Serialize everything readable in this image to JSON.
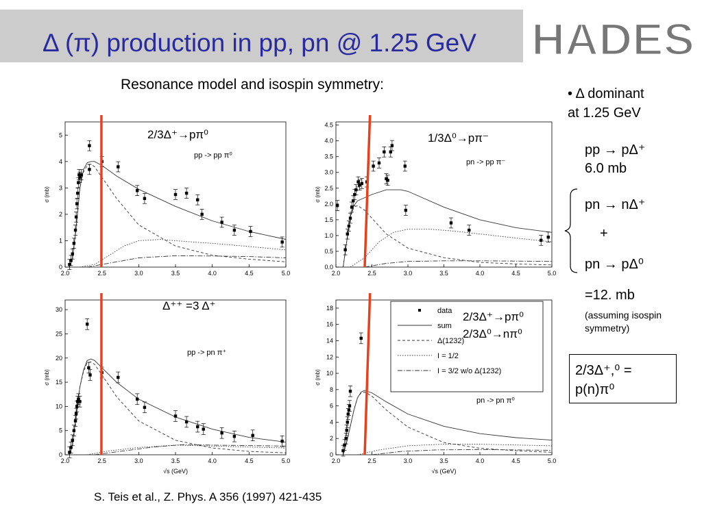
{
  "header": {
    "title": "Δ (π) production in pp, pn @ 1.25 GeV",
    "logo_text": "HADES"
  },
  "subtitle": "Resonance model and isospin symmetry:",
  "side": {
    "bullet": "• Δ dominant",
    "bullet2": "at 1.25 GeV",
    "pp_reaction": "pp → pΔ⁺",
    "pp_value": "6.0 mb",
    "pn_reaction1": "pn → nΔ⁺",
    "plus": "+",
    "pn_reaction2": "pn → pΔ⁰",
    "pn_value": "=12. mb",
    "note1": "(assuming isospin",
    "note2": "symmetry)",
    "box_line1": "2/3Δ⁺,⁰ =",
    "box_line2": "p(n)π⁰"
  },
  "citation": "S. Teis et al., Z. Phys. A 356 (1997) 421-435",
  "colors": {
    "title": "#2a2aa0",
    "red_line": "#e8401c",
    "title_bar": "#cccccc"
  },
  "panel_labels": {
    "p1": "2/3Δ⁺→pπ⁰",
    "p2": "1/3Δ⁰→pπ⁻",
    "p3": "Δ⁺⁺ =3 Δ⁺",
    "legend_extra1": "2/3Δ⁺→pπ⁰",
    "legend_extra2": "2/3Δ⁰→nπ⁰"
  },
  "chart_data": [
    {
      "type": "scatter",
      "reaction": "pp -> pp π⁰",
      "xlabel": "",
      "ylabel": "σ (mb)",
      "xlim": [
        2.0,
        5.0
      ],
      "ylim": [
        0,
        5.5
      ],
      "xticks": [
        "2.0",
        "2.5",
        "3.0",
        "3.5",
        "4.0",
        "4.5",
        "5.0"
      ],
      "yticks": [
        "0",
        "1",
        "2",
        "3",
        "4",
        "5"
      ],
      "red_line_x": 2.4,
      "data_points": [
        [
          2.06,
          0.1
        ],
        [
          2.08,
          0.25
        ],
        [
          2.1,
          0.5
        ],
        [
          2.12,
          0.9
        ],
        [
          2.14,
          1.4
        ],
        [
          2.15,
          1.9
        ],
        [
          2.16,
          2.4
        ],
        [
          2.17,
          2.8
        ],
        [
          2.18,
          3.2
        ],
        [
          2.19,
          3.5
        ],
        [
          2.2,
          3.4
        ],
        [
          2.22,
          3.5
        ],
        [
          2.33,
          4.6
        ],
        [
          2.33,
          3.7
        ],
        [
          2.5,
          4.0
        ],
        [
          2.72,
          3.8
        ],
        [
          2.98,
          2.9
        ],
        [
          3.08,
          2.6
        ],
        [
          3.5,
          2.75
        ],
        [
          3.65,
          2.8
        ],
        [
          3.8,
          2.55
        ],
        [
          3.86,
          2.0
        ],
        [
          4.13,
          1.7
        ],
        [
          4.3,
          1.4
        ],
        [
          4.52,
          1.35
        ],
        [
          4.95,
          0.95
        ]
      ],
      "series": [
        {
          "name": "sum",
          "x": [
            2.05,
            2.1,
            2.15,
            2.2,
            2.25,
            2.3,
            2.35,
            2.4,
            2.5,
            2.7,
            3.0,
            3.5,
            4.0,
            4.5,
            5.0
          ],
          "y": [
            0,
            0.3,
            1.5,
            3.0,
            3.7,
            3.95,
            4.0,
            4.0,
            3.85,
            3.45,
            2.95,
            2.3,
            1.75,
            1.35,
            1.05
          ]
        },
        {
          "name": "Δ(1232)",
          "x": [
            2.05,
            2.1,
            2.15,
            2.2,
            2.25,
            2.3,
            2.35,
            2.4,
            2.5,
            2.7,
            3.0,
            3.5,
            4.0,
            4.5,
            5.0
          ],
          "y": [
            0,
            0.3,
            1.5,
            3.0,
            3.6,
            3.85,
            3.9,
            3.8,
            3.4,
            2.6,
            1.6,
            0.8,
            0.45,
            0.3,
            0.2
          ]
        },
        {
          "name": "I = 1/2",
          "x": [
            2.2,
            2.4,
            2.6,
            2.8,
            3.0,
            3.3,
            3.5,
            4.0,
            4.5,
            5.0
          ],
          "y": [
            0,
            0.1,
            0.45,
            0.8,
            1.0,
            1.05,
            1.0,
            0.9,
            0.78,
            0.65
          ]
        },
        {
          "name": "I = 3/2 w/o Δ(1232)",
          "x": [
            2.3,
            2.6,
            3.0,
            3.5,
            4.0,
            4.5,
            5.0
          ],
          "y": [
            0,
            0.15,
            0.35,
            0.43,
            0.42,
            0.4,
            0.35
          ]
        }
      ]
    },
    {
      "type": "scatter",
      "reaction": "pn -> pp π⁻",
      "xlabel": "",
      "ylabel": "σ (mb)",
      "xlim": [
        2.0,
        5.0
      ],
      "ylim": [
        0,
        4.6
      ],
      "xticks": [
        "2.0",
        "2.5",
        "3.0",
        "3.5",
        "4.0",
        "4.5",
        "5.0"
      ],
      "yticks": [
        "0.0",
        "0.5",
        "1.0",
        "1.5",
        "2.0",
        "2.5",
        "3.0",
        "3.5",
        "4.0",
        "4.5"
      ],
      "red_line_x": 2.4,
      "data_points": [
        [
          2.02,
          1.95
        ],
        [
          2.13,
          0.55
        ],
        [
          2.16,
          1.05
        ],
        [
          2.18,
          1.3
        ],
        [
          2.2,
          1.55
        ],
        [
          2.22,
          1.9
        ],
        [
          2.24,
          2.1
        ],
        [
          2.26,
          2.3
        ],
        [
          2.28,
          2.45
        ],
        [
          2.31,
          2.7
        ],
        [
          2.33,
          2.6
        ],
        [
          2.36,
          2.65
        ],
        [
          2.43,
          2.7
        ],
        [
          2.52,
          3.2
        ],
        [
          2.6,
          3.3
        ],
        [
          2.67,
          3.65
        ],
        [
          2.7,
          2.8
        ],
        [
          2.72,
          2.75
        ],
        [
          2.76,
          3.65
        ],
        [
          2.78,
          3.85
        ],
        [
          2.96,
          3.2
        ],
        [
          2.97,
          1.8
        ],
        [
          3.6,
          1.4
        ],
        [
          3.85,
          1.17
        ],
        [
          4.85,
          0.85
        ],
        [
          4.95,
          0.95
        ]
      ],
      "series": [
        {
          "name": "sum",
          "x": [
            2.1,
            2.15,
            2.2,
            2.25,
            2.3,
            2.4,
            2.5,
            2.7,
            2.9,
            3.0,
            3.2,
            3.5,
            4.0,
            4.5,
            5.0
          ],
          "y": [
            0,
            0.8,
            1.6,
            1.95,
            2.1,
            2.2,
            2.3,
            2.45,
            2.45,
            2.4,
            2.2,
            1.9,
            1.5,
            1.25,
            1.1
          ]
        },
        {
          "name": "Δ(1232)",
          "x": [
            2.1,
            2.15,
            2.2,
            2.25,
            2.3,
            2.4,
            2.5,
            2.7,
            3.0,
            3.5,
            4.0,
            4.5,
            5.0
          ],
          "y": [
            0,
            0.8,
            1.6,
            1.9,
            1.95,
            1.8,
            1.55,
            1.05,
            0.6,
            0.3,
            0.15,
            0.1,
            0.07
          ]
        },
        {
          "name": "I = 1/2",
          "x": [
            2.2,
            2.4,
            2.6,
            2.8,
            3.0,
            3.3,
            3.6,
            4.0,
            4.5,
            5.0
          ],
          "y": [
            0,
            0.3,
            0.8,
            1.1,
            1.2,
            1.2,
            1.15,
            1.05,
            0.92,
            0.8
          ]
        },
        {
          "name": "I = 3/2 w/o Δ(1232)",
          "x": [
            2.4,
            2.7,
            3.0,
            3.5,
            4.0,
            4.5,
            5.0
          ],
          "y": [
            0,
            0.12,
            0.18,
            0.2,
            0.2,
            0.19,
            0.18
          ]
        }
      ]
    },
    {
      "type": "scatter",
      "reaction": "pp -> pn π⁺",
      "xlabel": "√s (GeV)",
      "ylabel": "σ (mb)",
      "xlim": [
        2.0,
        5.0
      ],
      "ylim": [
        0,
        32
      ],
      "xticks": [
        "2.0",
        "2.5",
        "3.0",
        "3.5",
        "4.0",
        "4.5",
        "5.0"
      ],
      "yticks": [
        "0",
        "5",
        "10",
        "15",
        "20",
        "25",
        "30"
      ],
      "red_line_x": 2.4,
      "data_points": [
        [
          2.06,
          0.5
        ],
        [
          2.08,
          1.5
        ],
        [
          2.1,
          3
        ],
        [
          2.12,
          5
        ],
        [
          2.14,
          7
        ],
        [
          2.15,
          8.5
        ],
        [
          2.16,
          10
        ],
        [
          2.17,
          11
        ],
        [
          2.18,
          11.5
        ],
        [
          2.2,
          11
        ],
        [
          2.3,
          27
        ],
        [
          2.32,
          18
        ],
        [
          2.34,
          16.5
        ],
        [
          2.5,
          17
        ],
        [
          2.72,
          16
        ],
        [
          2.98,
          11.5
        ],
        [
          3.08,
          9.8
        ],
        [
          3.5,
          8
        ],
        [
          3.65,
          6.8
        ],
        [
          3.8,
          5.8
        ],
        [
          3.88,
          5.3
        ],
        [
          4.13,
          4.5
        ],
        [
          4.3,
          3.8
        ],
        [
          4.55,
          4.0
        ],
        [
          4.95,
          2.8
        ]
      ],
      "series": [
        {
          "name": "sum",
          "x": [
            2.05,
            2.1,
            2.15,
            2.2,
            2.25,
            2.3,
            2.35,
            2.4,
            2.5,
            2.7,
            3.0,
            3.5,
            4.0,
            4.5,
            5.0
          ],
          "y": [
            0,
            2,
            8,
            14,
            17.5,
            19.5,
            19.8,
            19.5,
            18,
            15,
            11.5,
            7.8,
            5.3,
            3.6,
            2.6
          ]
        },
        {
          "name": "Δ(1232)",
          "x": [
            2.05,
            2.1,
            2.15,
            2.2,
            2.25,
            2.3,
            2.35,
            2.4,
            2.5,
            2.7,
            3.0,
            3.5,
            4.0,
            4.5,
            5.0
          ],
          "y": [
            0,
            2,
            8,
            14,
            17.2,
            19,
            19.2,
            18.7,
            16.5,
            12,
            7,
            3,
            1.4,
            0.7,
            0.4
          ]
        },
        {
          "name": "I = 1/2",
          "x": [
            2.3,
            2.6,
            3.0,
            3.5,
            4.0,
            4.5,
            5.0
          ],
          "y": [
            0,
            0.8,
            1.5,
            2.0,
            1.8,
            1.6,
            1.4
          ]
        },
        {
          "name": "I = 3/2 w/o Δ(1232)",
          "x": [
            2.4,
            2.8,
            3.2,
            3.6,
            4.0,
            4.5,
            5.0
          ],
          "y": [
            0,
            0.8,
            1.6,
            2.1,
            2.0,
            1.9,
            1.8
          ]
        }
      ]
    },
    {
      "type": "scatter",
      "reaction": "pn -> pn π⁰",
      "xlabel": "√s (GeV)",
      "ylabel": "σ (mb)",
      "xlim": [
        2.0,
        5.0
      ],
      "ylim": [
        0,
        19
      ],
      "xticks": [
        "2.0",
        "2.5",
        "3.0",
        "3.5",
        "4.0",
        "4.5",
        "5.0"
      ],
      "yticks": [
        "0",
        "2",
        "4",
        "6",
        "8",
        "10",
        "12",
        "14",
        "16",
        "18"
      ],
      "red_line_x": 2.4,
      "legend": {
        "position": "top-right",
        "entries": [
          {
            "label": "data",
            "style": "marker"
          },
          {
            "label": "sum",
            "style": "solid"
          },
          {
            "label": "Δ(1232)",
            "style": "dashed"
          },
          {
            "label": "I = 1/2",
            "style": "dotted"
          },
          {
            "label": "I = 3/2 w/o Δ(1232)",
            "style": "dashdot"
          }
        ]
      },
      "data_points": [
        [
          2.1,
          0.5
        ],
        [
          2.12,
          1.2
        ],
        [
          2.14,
          2
        ],
        [
          2.15,
          3
        ],
        [
          2.16,
          4
        ],
        [
          2.17,
          5
        ],
        [
          2.18,
          5.5
        ],
        [
          2.19,
          6
        ],
        [
          2.2,
          7.8
        ],
        [
          2.35,
          14.3
        ]
      ],
      "series": [
        {
          "name": "sum",
          "x": [
            2.1,
            2.15,
            2.2,
            2.25,
            2.3,
            2.35,
            2.4,
            2.5,
            2.7,
            3.0,
            3.5,
            4.0,
            4.5,
            5.0
          ],
          "y": [
            0,
            1.5,
            3.5,
            5.5,
            7,
            7.7,
            7.9,
            7.6,
            6.5,
            5,
            3.5,
            2.6,
            2.1,
            1.8
          ]
        },
        {
          "name": "Δ(1232)",
          "x": [
            2.1,
            2.15,
            2.2,
            2.25,
            2.3,
            2.35,
            2.4,
            2.5,
            2.7,
            3.0,
            3.5,
            4.0,
            4.5,
            5.0
          ],
          "y": [
            0,
            1.5,
            3.5,
            5.5,
            7,
            7.6,
            7.7,
            7.2,
            5.5,
            3.4,
            1.5,
            0.8,
            0.5,
            0.3
          ]
        },
        {
          "name": "I = 1/2",
          "x": [
            2.3,
            2.6,
            3.0,
            3.5,
            4.0,
            4.5,
            5.0
          ],
          "y": [
            0,
            0.6,
            1.1,
            1.3,
            1.3,
            1.2,
            1.1
          ]
        },
        {
          "name": "I = 3/2 w/o Δ(1232)",
          "x": [
            2.5,
            2.9,
            3.4,
            4.0,
            4.5,
            5.0
          ],
          "y": [
            0,
            0.4,
            0.6,
            0.65,
            0.6,
            0.55
          ]
        }
      ]
    }
  ]
}
